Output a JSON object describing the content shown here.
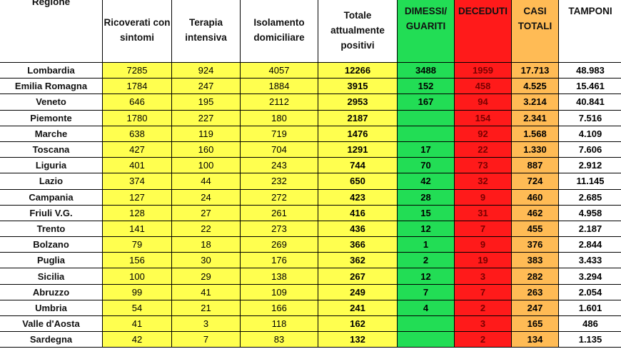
{
  "headers": {
    "regione": "Regione",
    "ricoverati": "Ricoverati con sintomi",
    "terapia": "Terapia intensiva",
    "isolamento": "Isolamento domiciliare",
    "totale": "Totale attualmente positivi",
    "dimessi": "DIMESSI/ GUARITI",
    "deceduti": "DECEDUTI",
    "casi": "CASI TOTALI",
    "tamponi": "TAMPONI"
  },
  "rows": [
    {
      "regione": "Lombardia",
      "ricoverati": "7285",
      "terapia": "924",
      "isolamento": "4057",
      "totale": "12266",
      "dimessi": "3488",
      "deceduti": "1959",
      "casi": "17.713",
      "tamponi": "48.983"
    },
    {
      "regione": "Emilia Romagna",
      "ricoverati": "1784",
      "terapia": "247",
      "isolamento": "1884",
      "totale": "3915",
      "dimessi": "152",
      "deceduti": "458",
      "casi": "4.525",
      "tamponi": "15.461"
    },
    {
      "regione": "Veneto",
      "ricoverati": "646",
      "terapia": "195",
      "isolamento": "2112",
      "totale": "2953",
      "dimessi": "167",
      "deceduti": "94",
      "casi": "3.214",
      "tamponi": "40.841"
    },
    {
      "regione": "Piemonte",
      "ricoverati": "1780",
      "terapia": "227",
      "isolamento": "180",
      "totale": "2187",
      "dimessi": "",
      "deceduti": "154",
      "casi": "2.341",
      "tamponi": "7.516"
    },
    {
      "regione": "Marche",
      "ricoverati": "638",
      "terapia": "119",
      "isolamento": "719",
      "totale": "1476",
      "dimessi": "",
      "deceduti": "92",
      "casi": "1.568",
      "tamponi": "4.109"
    },
    {
      "regione": "Toscana",
      "ricoverati": "427",
      "terapia": "160",
      "isolamento": "704",
      "totale": "1291",
      "dimessi": "17",
      "deceduti": "22",
      "casi": "1.330",
      "tamponi": "7.606"
    },
    {
      "regione": "Liguria",
      "ricoverati": "401",
      "terapia": "100",
      "isolamento": "243",
      "totale": "744",
      "dimessi": "70",
      "deceduti": "73",
      "casi": "887",
      "tamponi": "2.912"
    },
    {
      "regione": "Lazio",
      "ricoverati": "374",
      "terapia": "44",
      "isolamento": "232",
      "totale": "650",
      "dimessi": "42",
      "deceduti": "32",
      "casi": "724",
      "tamponi": "11.145"
    },
    {
      "regione": "Campania",
      "ricoverati": "127",
      "terapia": "24",
      "isolamento": "272",
      "totale": "423",
      "dimessi": "28",
      "deceduti": "9",
      "casi": "460",
      "tamponi": "2.685"
    },
    {
      "regione": "Friuli V.G.",
      "ricoverati": "128",
      "terapia": "27",
      "isolamento": "261",
      "totale": "416",
      "dimessi": "15",
      "deceduti": "31",
      "casi": "462",
      "tamponi": "4.958"
    },
    {
      "regione": "Trento",
      "ricoverati": "141",
      "terapia": "22",
      "isolamento": "273",
      "totale": "436",
      "dimessi": "12",
      "deceduti": "7",
      "casi": "455",
      "tamponi": "2.187"
    },
    {
      "regione": "Bolzano",
      "ricoverati": "79",
      "terapia": "18",
      "isolamento": "269",
      "totale": "366",
      "dimessi": "1",
      "deceduti": "9",
      "casi": "376",
      "tamponi": "2.844"
    },
    {
      "regione": "Puglia",
      "ricoverati": "156",
      "terapia": "30",
      "isolamento": "176",
      "totale": "362",
      "dimessi": "2",
      "deceduti": "19",
      "casi": "383",
      "tamponi": "3.433"
    },
    {
      "regione": "Sicilia",
      "ricoverati": "100",
      "terapia": "29",
      "isolamento": "138",
      "totale": "267",
      "dimessi": "12",
      "deceduti": "3",
      "casi": "282",
      "tamponi": "3.294"
    },
    {
      "regione": "Abruzzo",
      "ricoverati": "99",
      "terapia": "41",
      "isolamento": "109",
      "totale": "249",
      "dimessi": "7",
      "deceduti": "7",
      "casi": "263",
      "tamponi": "2.054"
    },
    {
      "regione": "Umbria",
      "ricoverati": "54",
      "terapia": "21",
      "isolamento": "166",
      "totale": "241",
      "dimessi": "4",
      "deceduti": "2",
      "casi": "247",
      "tamponi": "1.601"
    },
    {
      "regione": "Valle d'Aosta",
      "ricoverati": "41",
      "terapia": "3",
      "isolamento": "118",
      "totale": "162",
      "dimessi": "",
      "deceduti": "3",
      "casi": "165",
      "tamponi": "486"
    },
    {
      "regione": "Sardegna",
      "ricoverati": "42",
      "terapia": "7",
      "isolamento": "83",
      "totale": "132",
      "dimessi": "",
      "deceduti": "2",
      "casi": "134",
      "tamponi": "1.135"
    }
  ],
  "colors": {
    "yellow": "#ffff4f",
    "green": "#22dd55",
    "red": "#ff1a1a",
    "orange": "#ffbb55"
  }
}
